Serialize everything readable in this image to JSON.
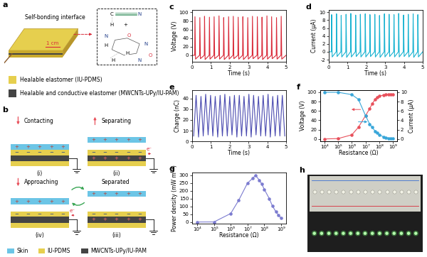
{
  "diagrams": {
    "a": {
      "panel": "a",
      "callout": "Self-bonding interface",
      "scale_bar": "1 cm",
      "structure_labels": [
        "C",
        "N",
        "H",
        "+",
        "N",
        "H",
        "O",
        "N",
        "H",
        "O",
        "H",
        "N"
      ],
      "key_items": [
        {
          "name": "Healable elastomer (IU-PDMS)",
          "color": "#e6cf4e"
        },
        {
          "name": "Healable and conductive elastomer (MWCNTs-UPy/IU-PAM)",
          "color": "#444444"
        }
      ]
    },
    "b": {
      "panel": "b",
      "steps": [
        {
          "number": "(i)",
          "name": "Contacting"
        },
        {
          "number": "(ii)",
          "name": "Separating"
        },
        {
          "number": "(iii)",
          "name": "Separated"
        },
        {
          "number": "(iv)",
          "name": "Approaching"
        }
      ],
      "electron": "e⁻",
      "charges": [
        "+",
        "−"
      ],
      "key_items": [
        {
          "name": "Skin",
          "color": "#6cc5e6"
        },
        {
          "name": "IU-PDMS",
          "color": "#e6cf4e"
        },
        {
          "name": "MWCNTs-UPy/IU-PAM",
          "color": "#444444"
        }
      ]
    },
    "h": {
      "panel": "h"
    }
  },
  "chart_data": [
    {
      "panel": "c",
      "type": "line",
      "x_label": "Time (s)",
      "y_label": "Voltage (V)",
      "color": "#d92b3a",
      "line_style": "solid",
      "xlim": [
        0,
        5
      ],
      "xticks": [
        0,
        1,
        2,
        3,
        4,
        5
      ],
      "ylim": [
        -15,
        105
      ],
      "yticks": [
        0,
        20,
        40,
        60,
        80,
        100
      ],
      "x": [
        0,
        0.135,
        0.15,
        0.18,
        0.395,
        0.41,
        0.44,
        0.645,
        0.66,
        0.69,
        0.905,
        0.92,
        0.95,
        1.155,
        1.17,
        1.2,
        1.415,
        1.43,
        1.46,
        1.665,
        1.68,
        1.71,
        1.925,
        1.94,
        1.97,
        2.175,
        2.19,
        2.22,
        2.435,
        2.45,
        2.48,
        2.685,
        2.7,
        2.73,
        2.945,
        2.96,
        2.99,
        3.195,
        3.21,
        3.24,
        3.455,
        3.47,
        3.5,
        3.705,
        3.72,
        3.75,
        3.965,
        3.98,
        4.01,
        4.215,
        4.23,
        4.26,
        4.475,
        4.49,
        4.52,
        4.725,
        4.74,
        4.77,
        5
      ],
      "values": [
        0,
        0,
        90,
        -9,
        0,
        88,
        -8,
        0,
        91,
        -10,
        0,
        89,
        -9,
        0,
        90,
        -8,
        0,
        92,
        -9,
        0,
        88,
        -10,
        0,
        90,
        -9,
        0,
        91,
        -8,
        0,
        89,
        -9,
        0,
        90,
        -10,
        0,
        88,
        -9,
        0,
        91,
        -8,
        0,
        90,
        -9,
        0,
        89,
        -10,
        0,
        92,
        -9,
        0,
        90,
        -8,
        0,
        88,
        -9,
        0,
        91,
        -9,
        0
      ]
    },
    {
      "panel": "d",
      "type": "line",
      "x_label": "Time (s)",
      "y_label": "Current (μA)",
      "color": "#19b3d1",
      "line_style": "solid",
      "xlim": [
        0,
        5
      ],
      "xticks": [
        0,
        1,
        2,
        3,
        4,
        5
      ],
      "ylim": [
        -2.5,
        10.5
      ],
      "yticks": [
        -2,
        0,
        2,
        4,
        6,
        8,
        10
      ],
      "x": [
        0,
        0.135,
        0.15,
        0.18,
        0.395,
        0.41,
        0.44,
        0.645,
        0.66,
        0.69,
        0.905,
        0.92,
        0.95,
        1.155,
        1.17,
        1.2,
        1.415,
        1.43,
        1.46,
        1.665,
        1.68,
        1.71,
        1.925,
        1.94,
        1.97,
        2.175,
        2.19,
        2.22,
        2.435,
        2.45,
        2.48,
        2.685,
        2.7,
        2.73,
        2.945,
        2.96,
        2.99,
        3.195,
        3.21,
        3.24,
        3.455,
        3.47,
        3.5,
        3.705,
        3.72,
        3.75,
        3.965,
        3.98,
        4.01,
        4.215,
        4.23,
        4.26,
        4.475,
        4.49,
        4.52,
        4.725,
        4.74,
        4.77,
        5
      ],
      "values": [
        0,
        0,
        9.4,
        -1.3,
        0,
        9.6,
        -1.2,
        0,
        9.2,
        -1.3,
        0,
        9.5,
        -1.4,
        0,
        9.7,
        -1.3,
        0,
        9.3,
        -1.2,
        0,
        9.5,
        -1.3,
        0,
        9.6,
        -1.3,
        0,
        9.4,
        -1.2,
        0,
        9.5,
        -1.3,
        0,
        9.2,
        -1.4,
        0,
        9.6,
        -1.3,
        0,
        9.5,
        -1.2,
        0,
        9.4,
        -1.3,
        0,
        9.7,
        -1.3,
        0,
        9.3,
        -1.2,
        0,
        9.5,
        -1.3,
        0,
        9.6,
        -1.4,
        0,
        9.4,
        -1.3,
        0
      ]
    },
    {
      "panel": "e",
      "type": "line",
      "x_label": "Time (s)",
      "y_label": "Charge (nC)",
      "color": "#4b4bb0",
      "line_style": "solid",
      "xlim": [
        0,
        5
      ],
      "xticks": [
        0,
        1,
        2,
        3,
        4,
        5
      ],
      "ylim": [
        0,
        48
      ],
      "yticks": [
        0,
        10,
        20,
        30,
        40
      ],
      "x": [
        0.08,
        0.21,
        0.34,
        0.47,
        0.59,
        0.72,
        0.85,
        0.98,
        1.1,
        1.23,
        1.36,
        1.49,
        1.61,
        1.74,
        1.87,
        2.0,
        2.12,
        2.25,
        2.38,
        2.51,
        2.63,
        2.76,
        2.89,
        3.02,
        3.14,
        3.27,
        3.4,
        3.53,
        3.65,
        3.78,
        3.91,
        4.04,
        4.16,
        4.29,
        4.42,
        4.55,
        4.67,
        4.8,
        4.93
      ],
      "values": [
        5,
        43,
        4,
        42,
        5,
        44,
        6,
        43,
        5,
        42,
        4,
        43,
        5,
        44,
        5,
        42,
        6,
        43,
        4,
        43,
        5,
        42,
        5,
        44,
        4,
        43,
        6,
        42,
        5,
        43,
        5,
        44,
        4,
        42,
        5,
        43,
        5,
        43,
        5
      ]
    },
    {
      "panel": "f",
      "type": "line",
      "log": "x",
      "x_label": "Resistance (Ω)",
      "y_label": "Voltage (V)",
      "y2_label": "Current (μA)",
      "xlim": [
        5000,
        2000000000
      ],
      "xticks": [
        {
          "value": 10000,
          "label": "10⁴"
        },
        {
          "value": 100000,
          "label": "10⁵"
        },
        {
          "value": 1000000,
          "label": "10⁶"
        },
        {
          "value": 10000000,
          "label": "10⁷"
        },
        {
          "value": 100000000,
          "label": "10⁸"
        },
        {
          "value": 1000000000,
          "label": "10⁹"
        }
      ],
      "ylim": [
        -5,
        105
      ],
      "yticks": [
        0,
        20,
        40,
        60,
        80,
        100
      ],
      "y2lim": [
        -0.5,
        10.5
      ],
      "y2ticks": [
        0,
        2,
        4,
        6,
        8,
        10
      ],
      "x": [
        10000,
        100000,
        1000000,
        3000000,
        10000000,
        20000000,
        30000000,
        50000000,
        70000000,
        100000000,
        200000000,
        300000000,
        500000000,
        700000000,
        1000000000
      ],
      "series": [
        {
          "color": "#e8505b",
          "marker": "circle",
          "line_style": "solid",
          "values": [
            0.1,
            1,
            9,
            25,
            50,
            65,
            75,
            85,
            90,
            92,
            94,
            95,
            95,
            95,
            95
          ]
        },
        {
          "color": "#37a6d9",
          "marker": "circle",
          "line_style": "solid",
          "axis": "y2",
          "values": [
            10,
            10,
            9.5,
            8.5,
            5,
            3.2,
            2.5,
            1.7,
            1.3,
            0.92,
            0.47,
            0.32,
            0.19,
            0.14,
            0.095
          ]
        }
      ]
    },
    {
      "panel": "g",
      "type": "line",
      "log": "x",
      "x_label": "Resistance (Ω)",
      "y_label": "Power density (mW m⁻²)",
      "color": "#7b7bd0",
      "marker": "circle",
      "line_style": "solid",
      "xlim": [
        5000,
        2000000000
      ],
      "xticks": [
        {
          "value": 10000,
          "label": "10⁴"
        },
        {
          "value": 100000,
          "label": "10⁵"
        },
        {
          "value": 1000000,
          "label": "10⁶"
        },
        {
          "value": 10000000,
          "label": "10⁷"
        },
        {
          "value": 100000000,
          "label": "10⁸"
        },
        {
          "value": 1000000000,
          "label": "10⁹"
        }
      ],
      "ylim": [
        -10,
        320
      ],
      "yticks": [
        0,
        50,
        100,
        150,
        200,
        250,
        300
      ],
      "x": [
        10000,
        100000,
        1000000,
        3000000,
        10000000,
        20000000,
        30000000,
        50000000,
        70000000,
        100000000,
        200000000,
        300000000,
        500000000,
        700000000,
        1000000000
      ],
      "values": [
        0,
        0.5,
        55,
        140,
        250,
        280,
        300,
        270,
        245,
        210,
        150,
        105,
        65,
        45,
        25
      ]
    }
  ]
}
